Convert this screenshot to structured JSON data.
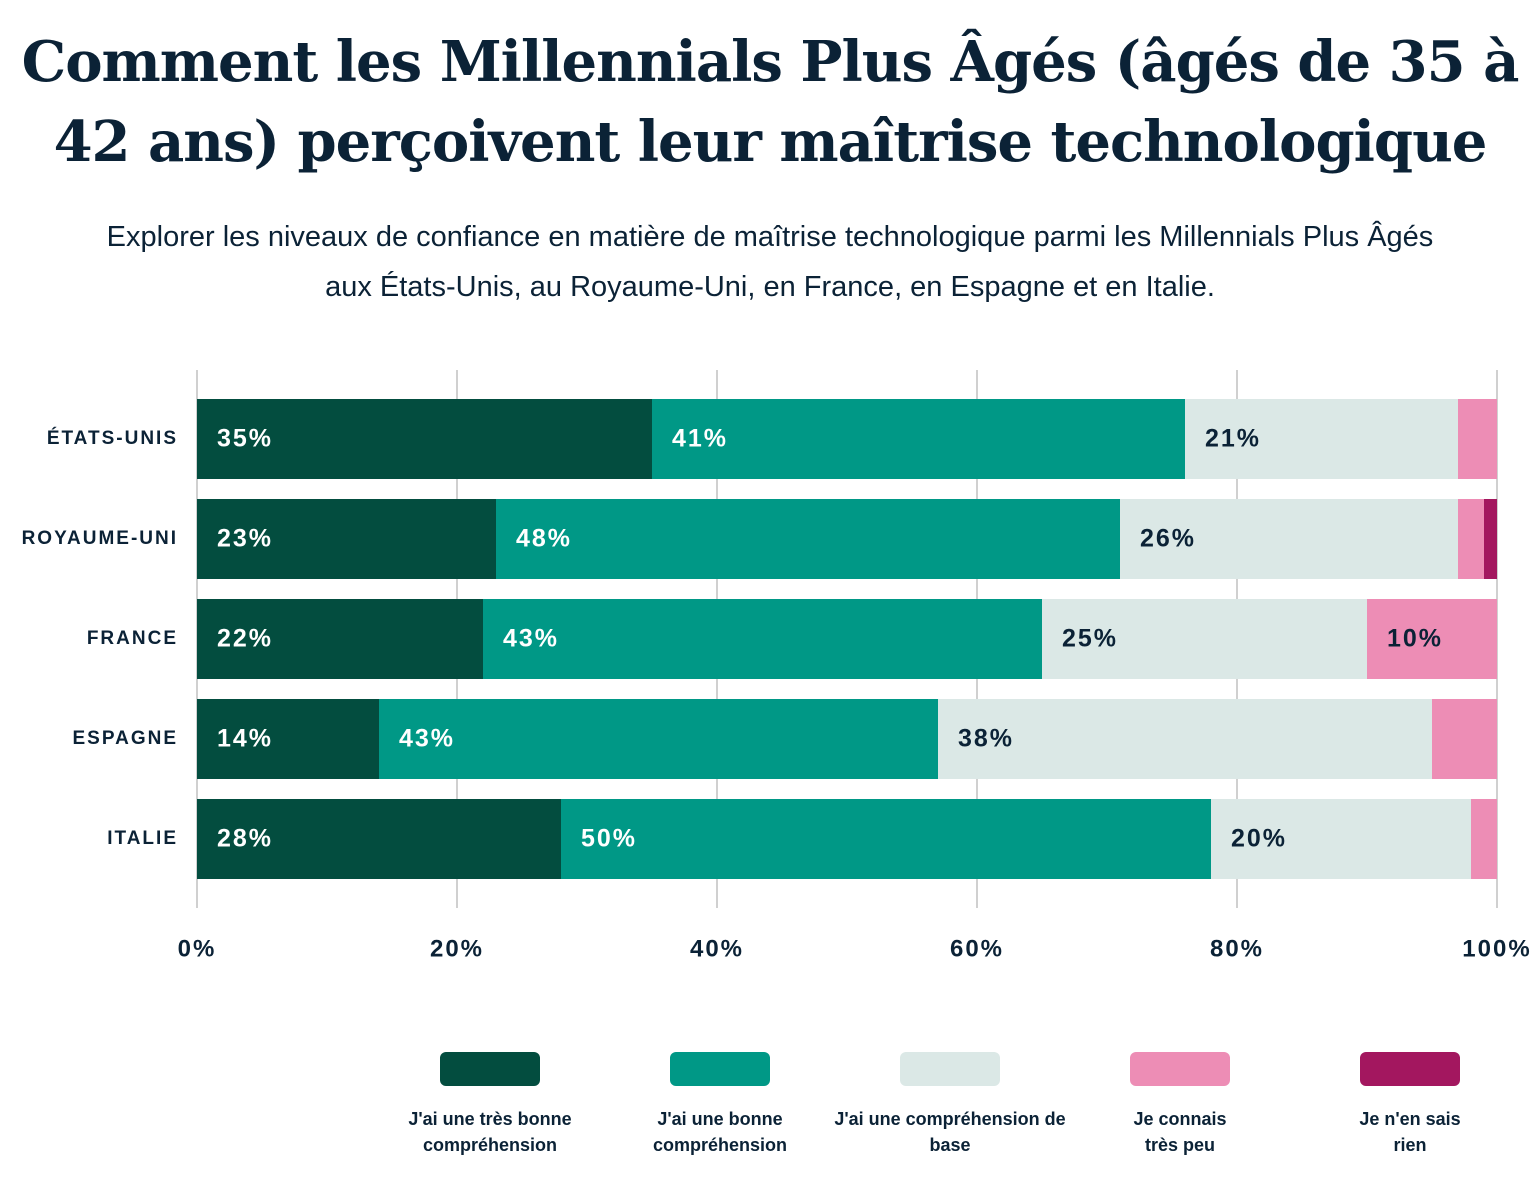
{
  "chart_data": {
    "type": "stacked-barh",
    "title": "Comment les Millennials Plus Âgés (âgés de 35 à 42 ans) perçoivent leur maîtrise technologique",
    "subtitle": "Explorer les niveaux de confiance en matière de maîtrise technologique parmi les Millennials Plus Âgés aux États-Unis, au Royaume-Uni, en France, en Espagne et en Italie.",
    "categories": [
      "ÉTATS-UNIS",
      "ROYAUME-UNI",
      "FRANCE",
      "ESPAGNE",
      "ITALIE"
    ],
    "series": [
      {
        "name": "J'ai une très bonne compréhension",
        "color": "#034d3f",
        "values": [
          35,
          23,
          22,
          14,
          28
        ],
        "value_labels": [
          "35%",
          "23%",
          "22%",
          "14%",
          "28%"
        ]
      },
      {
        "name": "J'ai une bonne compréhension",
        "color": "#009886",
        "values": [
          41,
          48,
          43,
          43,
          50
        ],
        "value_labels": [
          "41%",
          "48%",
          "43%",
          "43%",
          "50%"
        ]
      },
      {
        "name": "J'ai une compréhension de base",
        "color": "#dbe8e6",
        "values": [
          21,
          26,
          25,
          38,
          20
        ],
        "value_labels": [
          "21%",
          "26%",
          "25%",
          "38%",
          "20%"
        ]
      },
      {
        "name": "Je connais très peu",
        "color": "#ed8db5",
        "values": [
          3,
          2,
          10,
          5,
          2
        ],
        "value_labels": [
          null,
          null,
          "10%",
          null,
          null
        ]
      },
      {
        "name": "Je n'en sais rien",
        "color": "#a3175f",
        "values": [
          0,
          1,
          0,
          0,
          0
        ],
        "value_labels": [
          null,
          null,
          null,
          null,
          null
        ]
      }
    ],
    "xlim": [
      0,
      100
    ],
    "xticks": [
      {
        "value": 0,
        "label": "0%"
      },
      {
        "value": 20,
        "label": "20%"
      },
      {
        "value": 40,
        "label": "40%"
      },
      {
        "value": 60,
        "label": "60%"
      },
      {
        "value": 80,
        "label": "80%"
      },
      {
        "value": 100,
        "label": "100%"
      }
    ],
    "grid": true,
    "legend": "bottom"
  }
}
